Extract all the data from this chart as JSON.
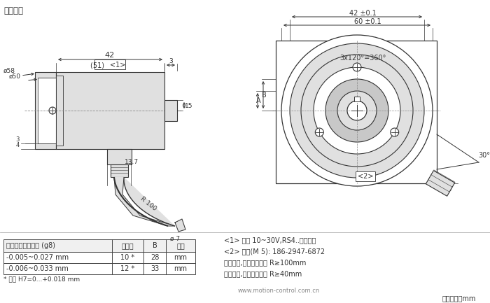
{
  "title_left": "同步法兰",
  "bg_color": "#ffffff",
  "line_color": "#333333",
  "gray_fill": "#c8c8c8",
  "light_gray": "#e0e0e0",
  "table_data": {
    "headers": [
      "安装轴的尺寸要求 (g8)",
      "空心轴",
      "B",
      "单位"
    ],
    "rows": [
      [
        "-0.005~0.027 mm",
        "10 *",
        "28",
        "mm"
      ],
      [
        "-0.006~0.033 mm",
        "12 *",
        "33",
        "mm"
      ]
    ],
    "footnote": "* 公差 H7=0...+0.018 mm"
  },
  "right_text": [
    "<1> 直流 10~30V,RS4..架的数值",
    "<2> 安装(M 5): 186-2947-6872",
    "弹性安装,电缆弯曲半径 R≥100mm",
    "固定安装,电缆弯曲半径 R≥40mm"
  ],
  "bottom_right": "尺寸单位：mm",
  "website": "www.motion-control.com.cn"
}
